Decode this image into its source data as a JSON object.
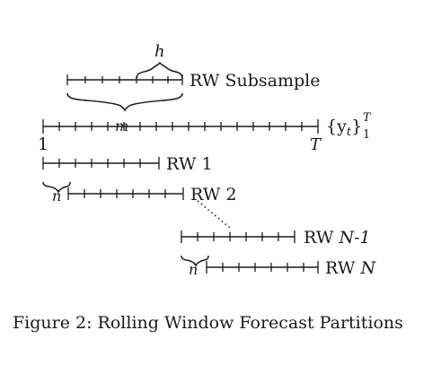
{
  "figure": {
    "caption": "Figure 2: Rolling Window Forecast Partitions",
    "full_sample": {
      "series_base": "{y",
      "series_sub": "t",
      "series_close": "}",
      "superscript": "T",
      "subscript": "1",
      "start_label": "1",
      "end_label": "T"
    },
    "subsample": {
      "label": "RW Subsample",
      "horizon_symbol": "h",
      "window_symbol": "m"
    },
    "shift_symbol": "n",
    "windows": [
      {
        "label": "RW 1"
      },
      {
        "label": "RW 2"
      },
      {
        "label_prefix": "RW ",
        "label_italic": "N-1"
      },
      {
        "label_prefix": "RW ",
        "label_italic": "N"
      }
    ]
  }
}
